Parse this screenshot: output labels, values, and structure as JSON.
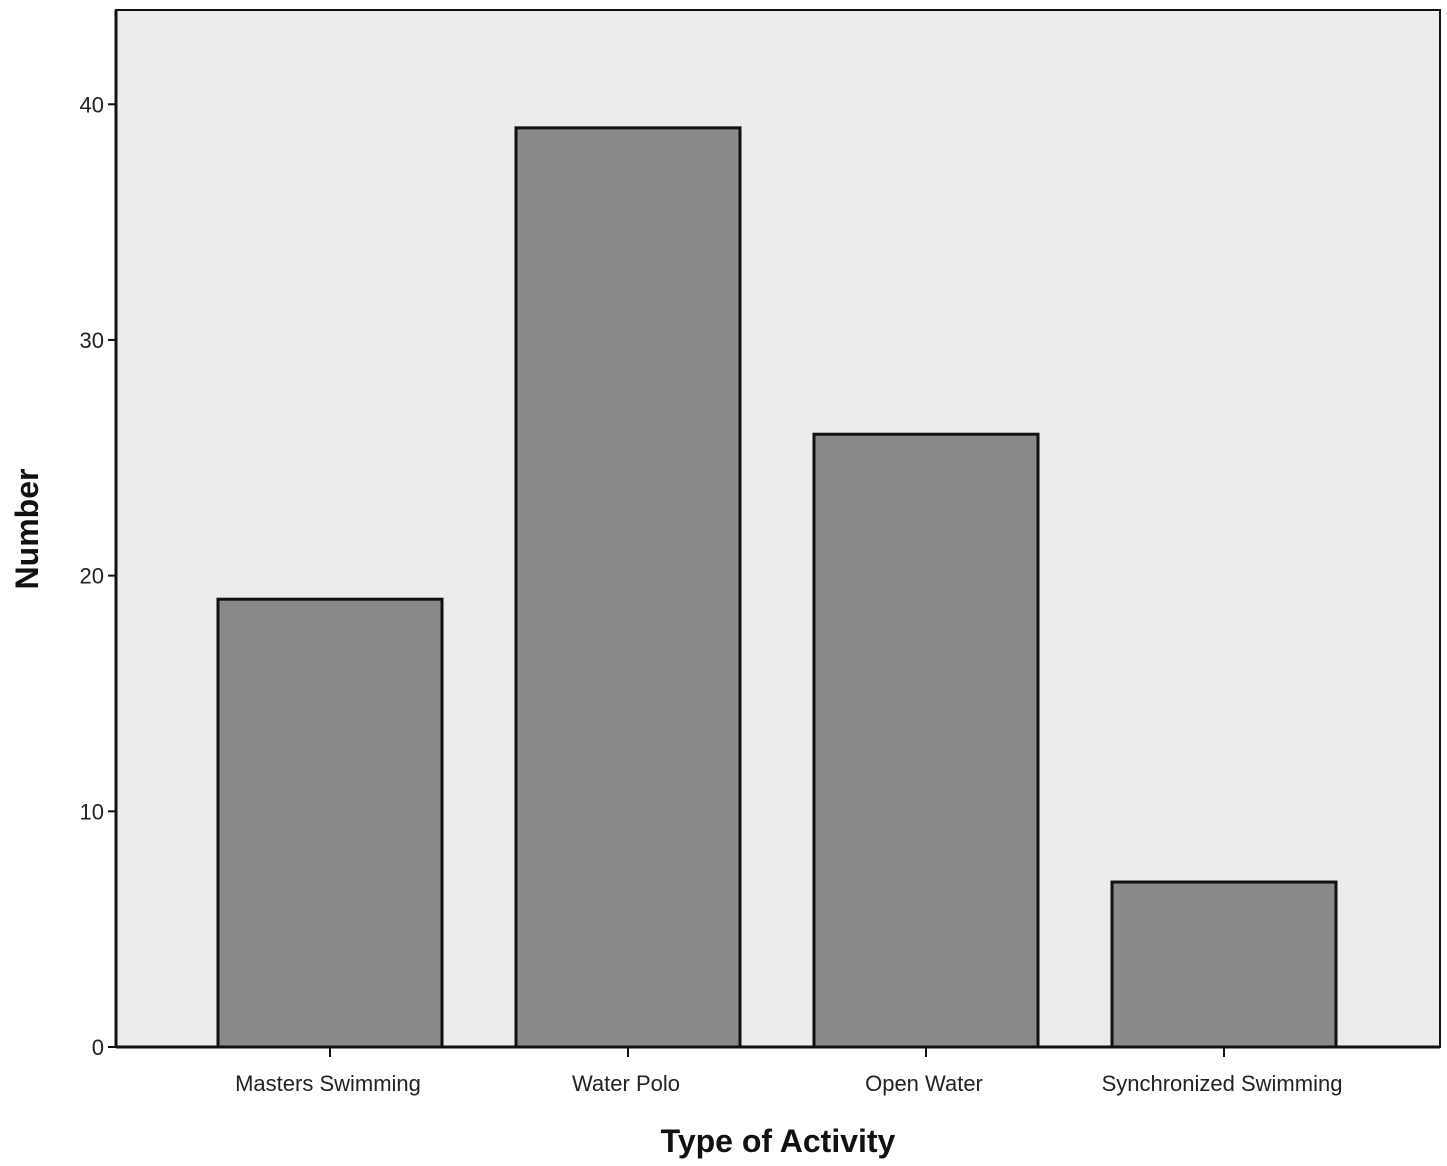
{
  "chart_data": {
    "type": "bar",
    "categories": [
      "Masters Swimming",
      "Water Polo",
      "Open Water",
      "Synchronized Swimming"
    ],
    "values": [
      19,
      39,
      26,
      7
    ],
    "xlabel": "Type of Activity",
    "ylabel": "Number",
    "ylim": [
      0,
      44
    ],
    "yticks": [
      0,
      10,
      20,
      30,
      40
    ],
    "grid": false,
    "legend": "none",
    "colors": {
      "bar_fill": "#898989",
      "bar_stroke": "#111111",
      "plot_background": "#ececec",
      "axis": "#111111"
    }
  }
}
